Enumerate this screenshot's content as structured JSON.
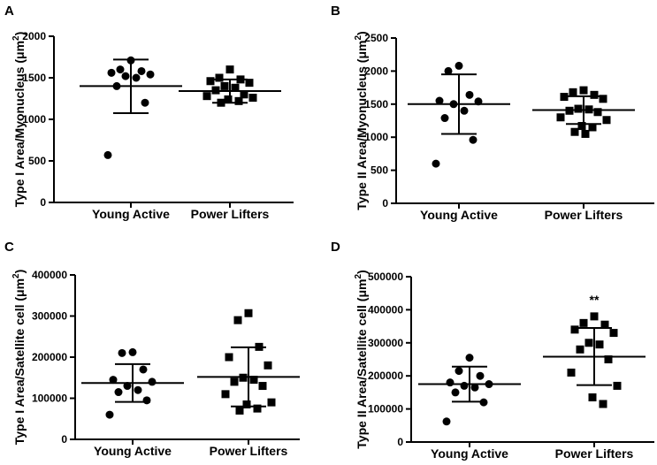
{
  "chart_data": [
    {
      "panel": "A",
      "type": "scatter",
      "ylabel": "Type I Area/Myonucleus (μm²)",
      "ylabel_main": "Type I Area/Myonucleus (μm",
      "ylabel_sup": "2",
      "ylabel_close": ")",
      "ylim": [
        0,
        2000
      ],
      "yticks": [
        0,
        500,
        1000,
        1500,
        2000
      ],
      "ytick_labels": [
        "0",
        "500",
        "1000",
        "1500",
        "2000"
      ],
      "categories": [
        "Young Active",
        "Power Lifters"
      ],
      "groups": [
        {
          "name": "Young Active",
          "marker": "circle",
          "values": [
            1710,
            1600,
            1580,
            1560,
            1540,
            1520,
            1500,
            1400,
            1200,
            570
          ],
          "mean": 1400,
          "upper": 1720,
          "lower": 1075
        },
        {
          "name": "Power Lifters",
          "marker": "square",
          "values": [
            1600,
            1500,
            1480,
            1460,
            1440,
            1400,
            1380,
            1350,
            1300,
            1280,
            1260,
            1240,
            1220,
            1200
          ],
          "mean": 1340,
          "upper": 1480,
          "lower": 1200
        }
      ],
      "annotation": ""
    },
    {
      "panel": "B",
      "type": "scatter",
      "ylabel": "Type II Area/Myonucleus (μm²)",
      "ylabel_main": "Type II Area/Myonucleus (μm",
      "ylabel_sup": "2",
      "ylabel_close": ")",
      "ylim": [
        0,
        2500
      ],
      "yticks": [
        0,
        500,
        1000,
        1500,
        2000,
        2500
      ],
      "ytick_labels": [
        "0",
        "500",
        "1000",
        "1500",
        "2000",
        "2500"
      ],
      "categories": [
        "Young Active",
        "Power Lifters"
      ],
      "groups": [
        {
          "name": "Young Active",
          "marker": "circle",
          "values": [
            2080,
            2000,
            1640,
            1550,
            1540,
            1500,
            1400,
            1290,
            960,
            600
          ],
          "mean": 1500,
          "upper": 1950,
          "lower": 1050
        },
        {
          "name": "Power Lifters",
          "marker": "square",
          "values": [
            1710,
            1680,
            1640,
            1610,
            1580,
            1430,
            1420,
            1400,
            1380,
            1300,
            1260,
            1170,
            1150,
            1080,
            1050
          ],
          "mean": 1410,
          "upper": 1620,
          "lower": 1200
        }
      ],
      "annotation": ""
    },
    {
      "panel": "C",
      "type": "scatter",
      "ylabel": "Type I Area/Satellite cell (μm²)",
      "ylabel_main": "Type I Area/Satellite cell (μm",
      "ylabel_sup": "2",
      "ylabel_close": ")",
      "ylim": [
        0,
        400000
      ],
      "yticks": [
        0,
        100000,
        200000,
        300000,
        400000
      ],
      "ytick_labels": [
        "0",
        "100000",
        "200000",
        "300000",
        "400000"
      ],
      "categories": [
        "Young Active",
        "Power Lifters"
      ],
      "groups": [
        {
          "name": "Young Active",
          "marker": "circle",
          "values": [
            212000,
            210000,
            170000,
            145000,
            140000,
            130000,
            120000,
            115000,
            95000,
            60000
          ],
          "mean": 137000,
          "upper": 183000,
          "lower": 91000
        },
        {
          "name": "Power Lifters",
          "marker": "square",
          "values": [
            307000,
            290000,
            225000,
            200000,
            180000,
            150000,
            145000,
            140000,
            130000,
            110000,
            90000,
            85000,
            75000,
            70000
          ],
          "mean": 152000,
          "upper": 224000,
          "lower": 80000
        }
      ],
      "annotation": ""
    },
    {
      "panel": "D",
      "type": "scatter",
      "ylabel": "Type II Area/Satellite cell (μm²)",
      "ylabel_main": "Type II Area/Satellite cell (μm",
      "ylabel_sup": "2",
      "ylabel_close": ")",
      "ylim": [
        0,
        500000
      ],
      "yticks": [
        0,
        100000,
        200000,
        300000,
        400000,
        500000
      ],
      "ytick_labels": [
        "0",
        "100000",
        "200000",
        "300000",
        "400000",
        "500000"
      ],
      "categories": [
        "Young Active",
        "Power Lifters"
      ],
      "groups": [
        {
          "name": "Young Active",
          "marker": "circle",
          "values": [
            255000,
            215000,
            200000,
            180000,
            175000,
            170000,
            165000,
            150000,
            120000,
            62000
          ],
          "mean": 175000,
          "upper": 228000,
          "lower": 122000
        },
        {
          "name": "Power Lifters",
          "marker": "square",
          "values": [
            380000,
            360000,
            355000,
            340000,
            330000,
            300000,
            295000,
            280000,
            250000,
            210000,
            170000,
            135000,
            115000
          ],
          "mean": 258000,
          "upper": 345000,
          "lower": 172000
        }
      ],
      "annotation": "**"
    }
  ]
}
